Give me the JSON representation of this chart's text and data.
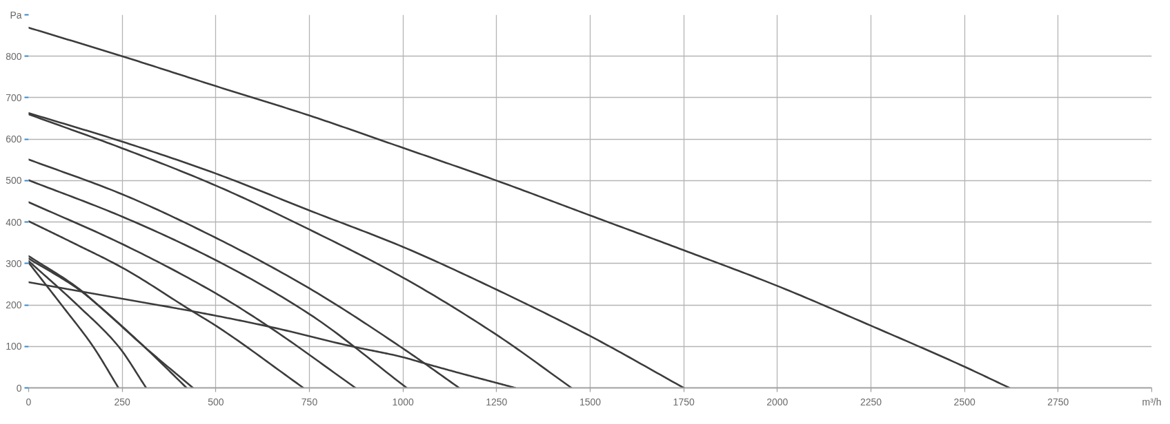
{
  "chart_data": {
    "type": "line",
    "series": [
      {
        "color": "#3c3c3c",
        "x": [
          0,
          250,
          500,
          750,
          1000,
          1250,
          1500,
          1750,
          2000,
          2250,
          2500,
          2620
        ],
        "values": [
          869,
          800,
          728,
          657,
          579,
          500,
          416,
          332,
          246,
          150,
          51,
          0
        ]
      },
      {
        "color": "#3c3c3c",
        "x": [
          0,
          250,
          500,
          750,
          1000,
          1250,
          1500,
          1750
        ],
        "values": [
          663,
          594,
          517,
          428,
          340,
          237,
          125,
          0
        ]
      },
      {
        "color": "#3c3c3c",
        "x": [
          0,
          250,
          500,
          750,
          1000,
          1250,
          1450
        ],
        "values": [
          660,
          578,
          488,
          382,
          266,
          128,
          0
        ]
      },
      {
        "color": "#3c3c3c",
        "x": [
          0,
          250,
          500,
          750,
          1000,
          1150
        ],
        "values": [
          551,
          467,
          362,
          240,
          95,
          0
        ]
      },
      {
        "color": "#3c3c3c",
        "x": [
          0,
          250,
          500,
          750,
          1010
        ],
        "values": [
          501,
          413,
          308,
          178,
          0
        ]
      },
      {
        "color": "#3c3c3c",
        "x": [
          0,
          250,
          500,
          641,
          873
        ],
        "values": [
          448,
          347,
          228,
          148,
          0
        ]
      },
      {
        "color": "#3c3c3c",
        "x": [
          0,
          125,
          250,
          437,
          500,
          734
        ],
        "values": [
          402,
          347,
          290,
          185,
          150,
          0
        ]
      },
      {
        "color": "#3c3c3c",
        "x": [
          0,
          250,
          437,
          641,
          864,
          1000,
          1054,
          1150,
          1250,
          1300
        ],
        "values": [
          255,
          215,
          185,
          148,
          100,
          74,
          60,
          36,
          12,
          0
        ]
      },
      {
        "color": "#3c3c3c",
        "x": [
          0,
          88,
          172,
          240
        ],
        "values": [
          302,
          200,
          100,
          0
        ]
      },
      {
        "color": "#3c3c3c",
        "x": [
          0,
          130,
          240,
          314
        ],
        "values": [
          306,
          200,
          100,
          0
        ]
      },
      {
        "color": "#3c3c3c",
        "x": [
          0,
          133,
          185,
          308,
          422
        ],
        "values": [
          312,
          238,
          200,
          100,
          0
        ]
      },
      {
        "color": "#3c3c3c",
        "x": [
          0,
          133,
          185,
          308,
          439
        ],
        "values": [
          318,
          240,
          200,
          100,
          0
        ]
      }
    ],
    "xlim": [
      0,
      3000
    ],
    "ylim": [
      0,
      900
    ],
    "xticks": [
      0,
      250,
      500,
      750,
      1000,
      1250,
      1500,
      1750,
      2000,
      2250,
      2500,
      2750,
      {
        "value": 3000,
        "label": "m³/h"
      }
    ],
    "yticks": [
      0,
      100,
      200,
      300,
      400,
      500,
      600,
      700,
      800,
      {
        "value": 900,
        "label": "Pa"
      }
    ],
    "grid": true
  }
}
